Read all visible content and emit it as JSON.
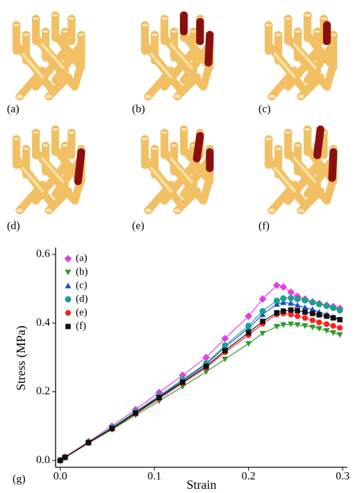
{
  "panels": [
    {
      "label": "(a)"
    },
    {
      "label": "(b)"
    },
    {
      "label": "(c)"
    },
    {
      "label": "(d)"
    },
    {
      "label": "(e)"
    },
    {
      "label": "(f)"
    }
  ],
  "chart_data": {
    "type": "line",
    "panel_label": "(g)",
    "xlabel": "Strain",
    "ylabel": "Stress (MPa)",
    "x": [
      0,
      0.005,
      0.03,
      0.055,
      0.08,
      0.105,
      0.13,
      0.155,
      0.175,
      0.2,
      0.215,
      0.23,
      0.237,
      0.245,
      0.252,
      0.26,
      0.268,
      0.275,
      0.283,
      0.29,
      0.297
    ],
    "series": [
      {
        "name": "(a)",
        "color": "#e040e0",
        "marker": "diamond",
        "values": [
          0,
          0.01,
          0.055,
          0.1,
          0.148,
          0.198,
          0.248,
          0.3,
          0.355,
          0.42,
          0.47,
          0.51,
          0.505,
          0.49,
          0.478,
          0.47,
          0.462,
          0.457,
          0.452,
          0.448,
          0.443
        ]
      },
      {
        "name": "(b)",
        "color": "#2a9a2a",
        "marker": "triangle-down",
        "values": [
          0,
          0.008,
          0.05,
          0.09,
          0.132,
          0.173,
          0.215,
          0.258,
          0.295,
          0.34,
          0.37,
          0.39,
          0.395,
          0.397,
          0.395,
          0.392,
          0.388,
          0.384,
          0.378,
          0.372,
          0.366
        ]
      },
      {
        "name": "(c)",
        "color": "#1a4fc0",
        "marker": "triangle-up",
        "values": [
          0,
          0.009,
          0.052,
          0.095,
          0.14,
          0.185,
          0.232,
          0.28,
          0.33,
          0.385,
          0.425,
          0.455,
          0.46,
          0.458,
          0.452,
          0.445,
          0.44,
          0.432,
          0.425,
          0.418,
          0.41
        ]
      },
      {
        "name": "(d)",
        "color": "#1aa090",
        "marker": "circle",
        "values": [
          0,
          0.009,
          0.053,
          0.096,
          0.142,
          0.188,
          0.235,
          0.283,
          0.335,
          0.392,
          0.435,
          0.465,
          0.472,
          0.473,
          0.47,
          0.466,
          0.46,
          0.455,
          0.45,
          0.444,
          0.437
        ]
      },
      {
        "name": "(e)",
        "color": "#ff2020",
        "marker": "hexagon",
        "values": [
          0,
          0.009,
          0.051,
          0.092,
          0.136,
          0.18,
          0.225,
          0.27,
          0.315,
          0.365,
          0.398,
          0.425,
          0.428,
          0.425,
          0.42,
          0.415,
          0.408,
          0.402,
          0.397,
          0.392,
          0.386
        ]
      },
      {
        "name": "(f)",
        "color": "#111111",
        "marker": "square",
        "values": [
          0,
          0.009,
          0.052,
          0.093,
          0.138,
          0.183,
          0.228,
          0.274,
          0.32,
          0.372,
          0.405,
          0.43,
          0.435,
          0.438,
          0.436,
          0.432,
          0.428,
          0.424,
          0.42,
          0.415,
          0.41
        ]
      }
    ],
    "xlim": [
      -0.005,
      0.305
    ],
    "ylim": [
      -0.02,
      0.62
    ],
    "xticks": [
      {
        "value": 0,
        "label": "0.0"
      },
      0.1,
      0.2,
      0.3
    ],
    "yticks": [
      {
        "value": 0,
        "label": "0.0"
      },
      0.2,
      0.4,
      0.6
    ],
    "legend": "upper-left",
    "grid": false
  }
}
